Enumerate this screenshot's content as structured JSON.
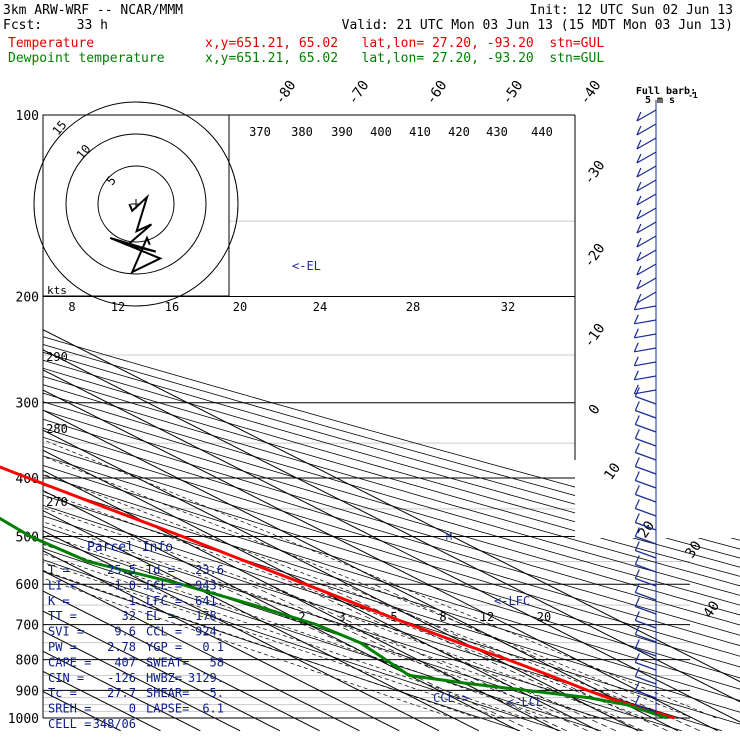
{
  "header": {
    "model": "3km ARW-WRF -- NCAR/MMM",
    "init": "Init: 12 UTC Sun 02 Jun 13",
    "fcst_label": "Fcst:",
    "fcst_value": "33 h",
    "valid": "Valid: 21 UTC Mon 03 Jun 13 (15 MDT Mon 03 Jun 13)",
    "temp_label": "Temperature",
    "dew_label": "Dewpoint temperature",
    "loc_temp": "x,y=651.21, 65.02   lat,lon= 27.20, -93.20  stn=GUL",
    "loc_dew": "x,y=651.21, 65.02   lat,lon= 27.20, -93.20  stn=GUL"
  },
  "barb_legend": {
    "title": "Full barb:",
    "value": "5 m s",
    "exp": "-1"
  },
  "hodograph": {
    "unit": "kts",
    "rings": [
      "5",
      "10",
      "15"
    ]
  },
  "el_label": "<-EL",
  "lfc_label": "<-LFC",
  "lcl_label": "<-LCL",
  "ccl_label": "CCL->",
  "m_label": "M",
  "parcel": {
    "title": "Parcel Info",
    "rows": [
      [
        "T  =",
        "25.5",
        "Td =",
        "23.6"
      ],
      [
        "LI =",
        "-1.0",
        "LCL =",
        "943."
      ],
      [
        "K  =",
        "1",
        "LFC =",
        "641."
      ],
      [
        "TT =",
        "32",
        "EL  =",
        "178."
      ],
      [
        "SVI =",
        "9.6",
        "CCL =",
        "924."
      ],
      [
        "PW  =",
        "2.78",
        "YGP =",
        "0.1"
      ],
      [
        "CAPE =",
        "407",
        "SWEAT=",
        "58"
      ],
      [
        "CIN  =",
        "-126",
        "HWBZ=",
        "3129."
      ],
      [
        "Tc =",
        "27.7",
        "SHEAR=",
        "5."
      ],
      [
        "SREH =",
        "0",
        "LAPSE=",
        "6.1"
      ],
      [
        "CELL =",
        "348/06",
        "",
        ""
      ]
    ]
  },
  "colors": {
    "temperature": "#ff0000",
    "dewpoint": "#008000",
    "wind": "#1a2a9a",
    "grid": "#000000"
  },
  "chart_data": {
    "type": "line",
    "title": "",
    "xlabel": "",
    "ylabel": "",
    "pressure_levels": [
      100,
      200,
      300,
      400,
      500,
      600,
      700,
      800,
      900,
      1000
    ],
    "pressure_labels": [
      "100",
      "200",
      "300",
      "400",
      "500",
      "600",
      "700",
      "800",
      "900",
      "1000"
    ],
    "isotherm_labels": [
      "-80",
      "-70",
      "-60",
      "-50",
      "-40",
      "-30",
      "-20",
      "-10",
      "0",
      "10",
      "20",
      "30",
      "40"
    ],
    "theta_labels": [
      "370",
      "380",
      "390",
      "400",
      "410",
      "420",
      "430",
      "440"
    ],
    "theta_lower_labels": [
      "290",
      "280",
      "270"
    ],
    "mixing_ratio_upper": [
      "8",
      "12",
      "16",
      "20",
      "24",
      "28",
      "32"
    ],
    "mixing_ratio_lower": [
      "2",
      "3",
      "5",
      "8",
      "12",
      "20"
    ],
    "series": [
      {
        "name": "Temperature",
        "p": [
          1000,
          975,
          950,
          925,
          900,
          850,
          800,
          750,
          700,
          650,
          600,
          550,
          500,
          450,
          400,
          350,
          300,
          250,
          200,
          175,
          150,
          125,
          110,
          100
        ],
        "t": [
          25.5,
          23.3,
          20.8,
          18.8,
          17.4,
          15.3,
          12.7,
          8.8,
          5.6,
          2.5,
          -0.7,
          -4.3,
          -7.8,
          -12.5,
          -17.5,
          -22.7,
          -29.5,
          -38.5,
          -51.5,
          -60.0,
          -68.5,
          -75.0,
          -75.5,
          -73.5
        ]
      },
      {
        "name": "Dewpoint temperature",
        "p": [
          1000,
          975,
          950,
          925,
          900,
          875,
          850,
          800,
          750,
          700,
          650,
          600,
          550,
          500,
          450,
          400,
          350,
          300,
          250,
          200,
          175,
          150,
          125,
          110,
          100
        ],
        "td": [
          23.6,
          22.0,
          20.0,
          14.0,
          2.0,
          -10.0,
          -20.0,
          -18.0,
          -16.0,
          -18.0,
          -24.0,
          -32.0,
          -44.0,
          -46.0,
          -44.0,
          -45.0,
          -49.5,
          -49.0,
          -55.0,
          -65.0,
          -66.0,
          -72.5,
          -80.0,
          -80.0,
          -80.0
        ]
      }
    ],
    "hodograph_kts": {
      "u": [
        0,
        4,
        8,
        6,
        10,
        2,
        12,
        -6,
        14,
        4,
        8,
        12
      ],
      "v": [
        0,
        -2,
        2,
        -8,
        -6,
        -12,
        -14,
        -10,
        -16,
        -20,
        -10,
        -12
      ]
    }
  }
}
